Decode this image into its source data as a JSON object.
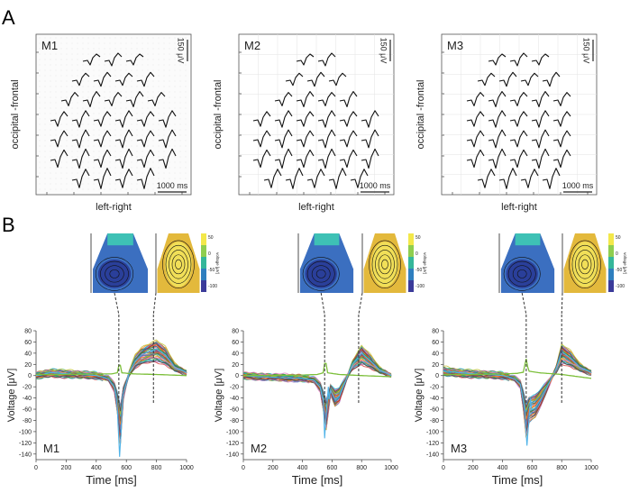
{
  "panel_labels": [
    "A",
    "B"
  ],
  "panel_a": {
    "xlabel": "left-right",
    "ylabel": "occipital -frontal",
    "scale_voltage": "150 μV",
    "scale_time": "1000 ms",
    "maps": [
      {
        "label": "M1",
        "rows": [
          3,
          4,
          5,
          6,
          6,
          6,
          4
        ]
      },
      {
        "label": "M2",
        "rows": [
          2,
          3,
          4,
          6,
          6,
          6,
          5
        ]
      },
      {
        "label": "M3",
        "rows": [
          3,
          4,
          5,
          5,
          5,
          5,
          4
        ]
      }
    ]
  },
  "topomap_colorbar": {
    "label": "voltage [μV]",
    "ticks": [
      "50",
      "0",
      "-50",
      "-100"
    ]
  },
  "chart_data": [
    {
      "type": "line",
      "title": "M1",
      "xlabel": "Time [ms]",
      "ylabel": "Voltage [μV]",
      "xlim": [
        0,
        1000
      ],
      "ylim": [
        -150,
        80
      ],
      "xticks": [
        0,
        200,
        400,
        600,
        800,
        1000
      ],
      "yticks": [
        80,
        60,
        40,
        20,
        0,
        -20,
        -40,
        -60,
        -80,
        -100,
        -120,
        -140
      ],
      "markers_ms": [
        550,
        780
      ],
      "waveform": {
        "x": [
          0,
          100,
          200,
          300,
          400,
          480,
          520,
          545,
          560,
          580,
          620,
          660,
          700,
          760,
          800,
          860,
          920,
          1000
        ],
        "y": [
          0,
          5,
          3,
          2,
          0,
          -5,
          -20,
          -55,
          -90,
          -30,
          5,
          25,
          35,
          42,
          45,
          35,
          15,
          5
        ]
      },
      "peak_trace": {
        "x": [
          540,
          555,
          565,
          575
        ],
        "y": [
          -60,
          -145,
          -100,
          -40
        ]
      },
      "reference": {
        "x": [
          0,
          200,
          400,
          500,
          540,
          555,
          570,
          650,
          800,
          1000
        ],
        "y": [
          2,
          2,
          3,
          3,
          5,
          25,
          5,
          3,
          2,
          0
        ]
      }
    },
    {
      "type": "line",
      "title": "M2",
      "xlabel": "Time [ms]",
      "ylabel": "Voltage [μV]",
      "xlim": [
        0,
        1000
      ],
      "ylim": [
        -150,
        80
      ],
      "xticks": [
        0,
        200,
        400,
        600,
        800,
        1000
      ],
      "yticks": [
        80,
        60,
        40,
        20,
        0,
        -20,
        -40,
        -60,
        -80,
        -100,
        -120,
        -140
      ],
      "markers_ms": [
        550,
        780
      ],
      "waveform": {
        "x": [
          0,
          100,
          200,
          300,
          400,
          480,
          520,
          545,
          560,
          590,
          620,
          650,
          690,
          740,
          800,
          860,
          920,
          1000
        ],
        "y": [
          0,
          -2,
          -3,
          -4,
          -5,
          -8,
          -20,
          -50,
          -70,
          -25,
          -40,
          -35,
          -10,
          20,
          38,
          25,
          10,
          0
        ]
      },
      "peak_trace": {
        "x": [
          540,
          550,
          560,
          575
        ],
        "y": [
          -40,
          -112,
          -70,
          -20
        ]
      },
      "reference": {
        "x": [
          0,
          200,
          400,
          500,
          540,
          555,
          570,
          650,
          800,
          1000
        ],
        "y": [
          0,
          0,
          1,
          2,
          5,
          30,
          5,
          2,
          0,
          -2
        ]
      }
    },
    {
      "type": "line",
      "title": "M3",
      "xlabel": "Time [ms]",
      "ylabel": "Voltage [μV]",
      "xlim": [
        0,
        1000
      ],
      "ylim": [
        -150,
        80
      ],
      "xticks": [
        0,
        200,
        400,
        600,
        800,
        1000
      ],
      "yticks": [
        80,
        60,
        40,
        20,
        0,
        -20,
        -40,
        -60,
        -80,
        -100,
        -120,
        -140
      ],
      "markers_ms": [
        560,
        800
      ],
      "waveform": {
        "x": [
          0,
          100,
          200,
          300,
          400,
          480,
          520,
          545,
          560,
          580,
          620,
          660,
          700,
          760,
          800,
          860,
          920,
          1000
        ],
        "y": [
          8,
          5,
          3,
          2,
          0,
          -5,
          -15,
          -50,
          -80,
          -60,
          -55,
          -40,
          -20,
          10,
          40,
          30,
          15,
          5
        ]
      },
      "peak_trace": {
        "x": [
          550,
          565,
          575,
          590
        ],
        "y": [
          -60,
          -125,
          -90,
          -40
        ]
      },
      "reference": {
        "x": [
          0,
          200,
          400,
          500,
          540,
          560,
          575,
          650,
          800,
          1000
        ],
        "y": [
          2,
          2,
          3,
          4,
          6,
          30,
          8,
          5,
          2,
          -5
        ]
      }
    }
  ]
}
